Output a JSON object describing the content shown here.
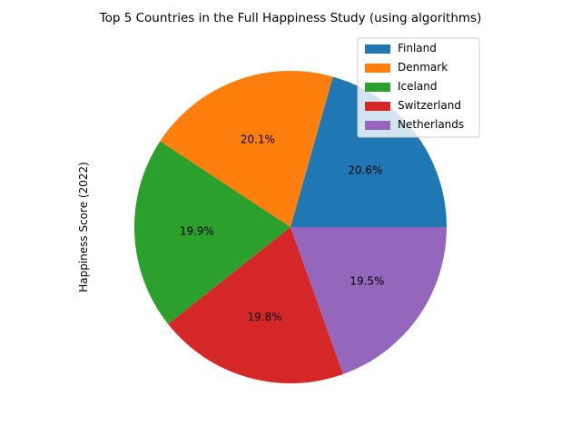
{
  "chart_data": {
    "type": "pie",
    "title": "Top 5 Countries in the Full Happiness Study (using algorithms)",
    "ylabel": "Happiness Score (2022)",
    "legend_position": "upper-right",
    "slices": [
      {
        "name": "Finland",
        "percent": 20.6,
        "percent_label": "20.6%",
        "color": "#1f77b4"
      },
      {
        "name": "Denmark",
        "percent": 20.1,
        "percent_label": "20.1%",
        "color": "#ff7f0e"
      },
      {
        "name": "Iceland",
        "percent": 19.9,
        "percent_label": "19.9%",
        "color": "#2ca02c"
      },
      {
        "name": "Switzerland",
        "percent": 19.8,
        "percent_label": "19.8%",
        "color": "#d62728"
      },
      {
        "name": "Netherlands",
        "percent": 19.5,
        "percent_label": "19.5%",
        "color": "#9467bd"
      }
    ]
  }
}
